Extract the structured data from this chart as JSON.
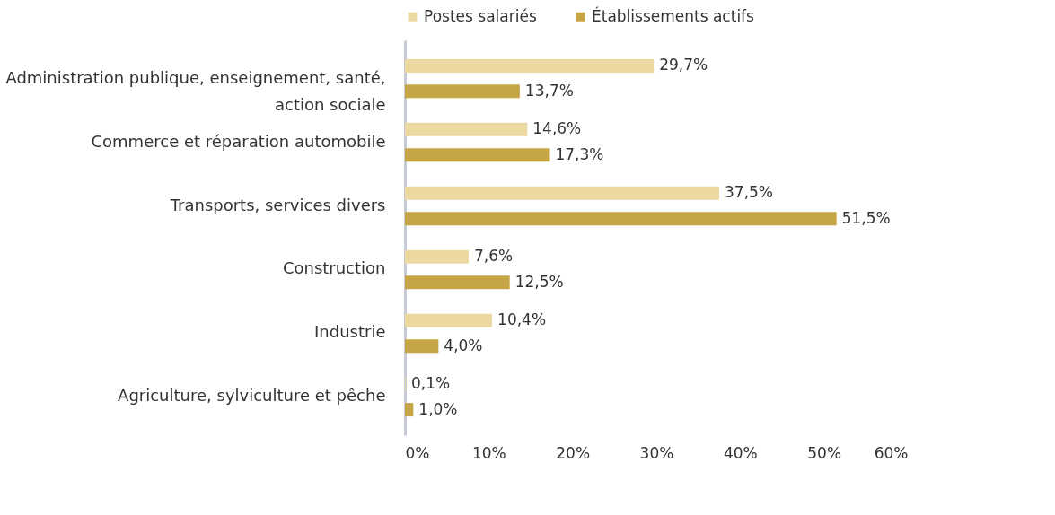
{
  "chart_data": {
    "type": "bar",
    "orientation": "horizontal",
    "categories": [
      "Administration publique, enseignement, santé, action sociale",
      "Commerce et réparation automobile",
      "Transports, services divers",
      "Construction",
      "Industrie",
      "Agriculture, sylviculture et pêche"
    ],
    "series": [
      {
        "name": "Postes salariés",
        "color": "#ecd9a2",
        "values": [
          29.7,
          14.6,
          37.5,
          7.6,
          10.4,
          0.1
        ],
        "value_labels": [
          "29,7%",
          "14,6%",
          "37,5%",
          "7,6%",
          "10,4%",
          "0,1%"
        ]
      },
      {
        "name": "Établissements actifs",
        "color": "#c6a544",
        "values": [
          13.7,
          17.3,
          51.5,
          12.5,
          4.0,
          1.0
        ],
        "value_labels": [
          "13,7%",
          "17,3%",
          "51,5%",
          "12,5%",
          "4,0%",
          "1,0%"
        ]
      }
    ],
    "xlim": [
      0,
      60
    ],
    "xticks": [
      {
        "value": 0,
        "label": "0%"
      },
      {
        "value": 10,
        "label": "10%"
      },
      {
        "value": 20,
        "label": "20%"
      },
      {
        "value": 30,
        "label": "30%"
      },
      {
        "value": 40,
        "label": "40%"
      },
      {
        "value": 50,
        "label": "50%"
      },
      {
        "value": 60,
        "label": "60%"
      }
    ],
    "grid": false,
    "legend": "top"
  }
}
